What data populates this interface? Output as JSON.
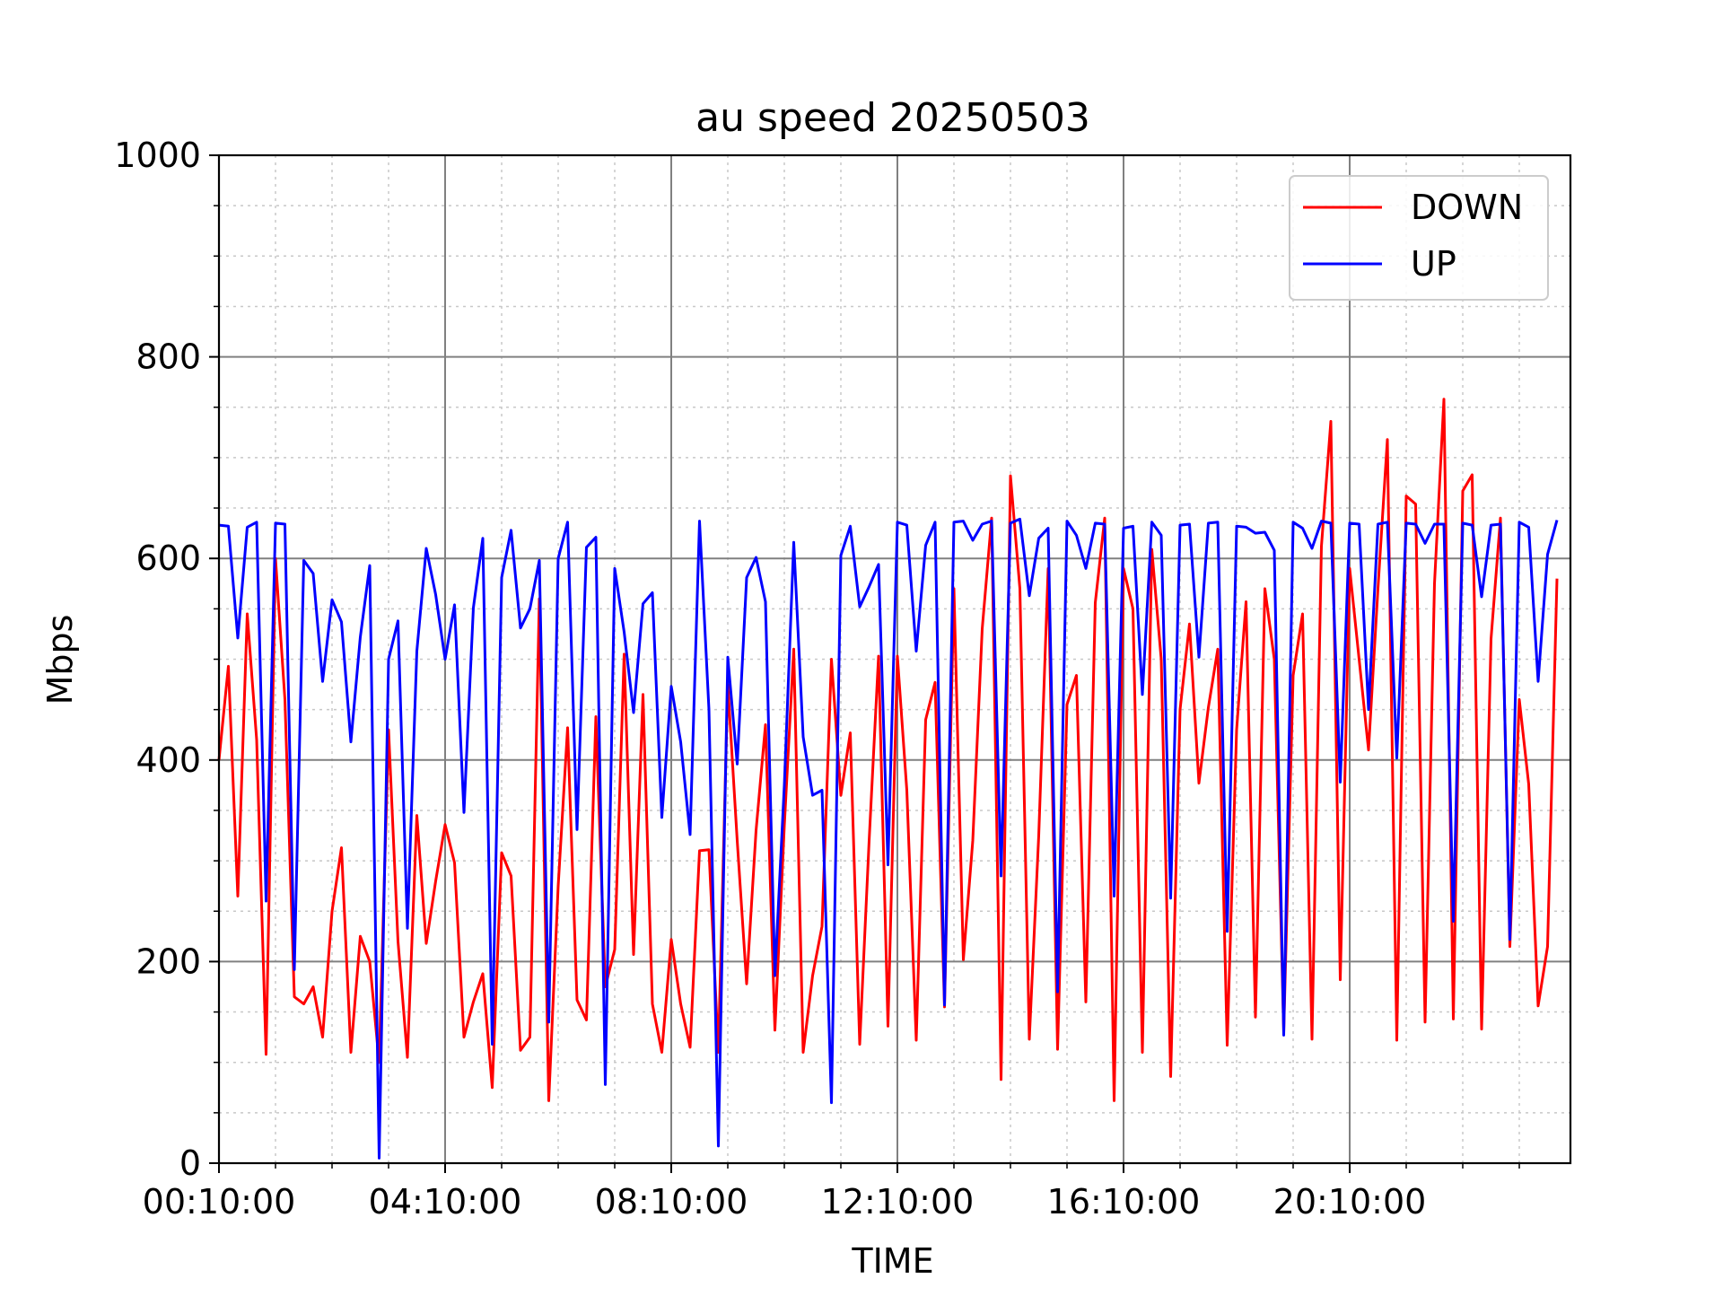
{
  "chart_data": {
    "type": "line",
    "title": "au speed 20250503",
    "xlabel": "TIME",
    "ylabel": "Mbps",
    "ylim": [
      0,
      1000
    ],
    "yticks": [
      0,
      200,
      400,
      600,
      800,
      1000
    ],
    "xticks": [
      "00:10:00",
      "04:10:00",
      "08:10:00",
      "12:10:00",
      "16:10:00",
      "20:10:00"
    ],
    "grid": {
      "major": true,
      "minor": true
    },
    "legend_position": "top-right",
    "series": [
      {
        "name": "DOWN",
        "color": "#ff0000",
        "x": [
          "00:10:00",
          "00:20:00",
          "00:30:00",
          "00:40:00",
          "00:50:00",
          "01:00:00",
          "01:10:00",
          "01:20:00",
          "01:30:00",
          "01:40:00",
          "01:50:00",
          "02:00:00",
          "02:10:00",
          "02:20:00",
          "02:30:00",
          "02:40:00",
          "02:50:00",
          "03:00:00",
          "03:10:00",
          "03:20:00",
          "03:30:00",
          "03:40:00",
          "03:50:00",
          "04:00:00",
          "04:10:00",
          "04:20:00",
          "04:30:00",
          "04:40:00",
          "04:50:00",
          "05:00:00",
          "05:10:00",
          "05:20:00",
          "05:30:00",
          "05:40:00",
          "05:50:00",
          "06:00:00",
          "06:10:00",
          "06:20:00",
          "06:30:00",
          "06:40:00",
          "06:50:00",
          "07:00:00",
          "07:10:00",
          "07:20:00",
          "07:30:00",
          "07:40:00",
          "07:50:00",
          "08:00:00",
          "08:10:00",
          "08:20:00",
          "08:30:00",
          "08:40:00",
          "08:50:00",
          "09:00:00",
          "09:10:00",
          "09:20:00",
          "09:30:00",
          "09:40:00",
          "09:50:00",
          "10:00:00",
          "10:10:00",
          "10:20:00",
          "10:30:00",
          "10:40:00",
          "10:50:00",
          "11:00:00",
          "11:10:00",
          "11:20:00",
          "11:30:00",
          "11:40:00",
          "11:50:00",
          "12:00:00",
          "12:10:00",
          "12:20:00",
          "12:30:00",
          "12:40:00",
          "12:50:00",
          "13:00:00",
          "13:10:00",
          "13:20:00",
          "13:30:00",
          "13:40:00",
          "13:50:00",
          "14:00:00",
          "14:10:00",
          "14:20:00",
          "14:30:00",
          "14:40:00",
          "14:50:00",
          "15:00:00",
          "15:10:00",
          "15:20:00",
          "15:30:00",
          "15:40:00",
          "15:50:00",
          "16:00:00",
          "16:10:00",
          "16:20:00",
          "16:30:00",
          "16:40:00",
          "16:50:00",
          "17:00:00",
          "17:10:00",
          "17:20:00",
          "17:30:00",
          "17:40:00",
          "17:50:00",
          "18:00:00",
          "18:10:00",
          "18:20:00",
          "18:30:00",
          "18:40:00",
          "18:50:00",
          "19:00:00",
          "19:10:00",
          "19:20:00",
          "19:30:00",
          "19:40:00",
          "19:50:00",
          "20:00:00",
          "20:10:00",
          "20:20:00",
          "20:30:00",
          "20:40:00",
          "20:50:00",
          "21:00:00",
          "21:10:00",
          "21:20:00",
          "21:30:00",
          "21:40:00",
          "21:50:00",
          "22:00:00",
          "22:10:00",
          "22:20:00",
          "22:30:00",
          "22:40:00",
          "22:50:00",
          "23:00:00",
          "23:10:00",
          "23:20:00",
          "23:30:00",
          "23:40:00",
          "23:50:00"
        ],
        "values": [
          400,
          493,
          265,
          545,
          420,
          108,
          600,
          460,
          165,
          158,
          175,
          125,
          250,
          313,
          110,
          225,
          200,
          100,
          430,
          220,
          105,
          345,
          218,
          280,
          336,
          298,
          125,
          160,
          188,
          75,
          308,
          285,
          112,
          125,
          560,
          62,
          275,
          432,
          162,
          142,
          443,
          175,
          212,
          505,
          207,
          465,
          158,
          110,
          222,
          158,
          115,
          310,
          311,
          110,
          475,
          320,
          178,
          330,
          435,
          132,
          335,
          510,
          110,
          186,
          235,
          500,
          365,
          427,
          118,
          320,
          503,
          136,
          503,
          370,
          122,
          440,
          477,
          155,
          570,
          202,
          320,
          530,
          640,
          83,
          682,
          570,
          123,
          325,
          590,
          113,
          455,
          484,
          160,
          556,
          640,
          62,
          590,
          550,
          110,
          609,
          500,
          86,
          450,
          535,
          377,
          452,
          510,
          117,
          430,
          557,
          145,
          570,
          500,
          130,
          484,
          545,
          123,
          612,
          736,
          182,
          590,
          500,
          410,
          570,
          718,
          122,
          662,
          654,
          140,
          575,
          758,
          143,
          667,
          683,
          133,
          520,
          640,
          215,
          460,
          376,
          156,
          215,
          580
        ]
      },
      {
        "name": "UP",
        "color": "#0000ff",
        "x": [
          "00:10:00",
          "00:20:00",
          "00:30:00",
          "00:40:00",
          "00:50:00",
          "01:00:00",
          "01:10:00",
          "01:20:00",
          "01:30:00",
          "01:40:00",
          "01:50:00",
          "02:00:00",
          "02:10:00",
          "02:20:00",
          "02:30:00",
          "02:40:00",
          "02:50:00",
          "03:00:00",
          "03:10:00",
          "03:20:00",
          "03:30:00",
          "03:40:00",
          "03:50:00",
          "04:00:00",
          "04:10:00",
          "04:20:00",
          "04:30:00",
          "04:40:00",
          "04:50:00",
          "05:00:00",
          "05:10:00",
          "05:20:00",
          "05:30:00",
          "05:40:00",
          "05:50:00",
          "06:00:00",
          "06:10:00",
          "06:20:00",
          "06:30:00",
          "06:40:00",
          "06:50:00",
          "07:00:00",
          "07:10:00",
          "07:20:00",
          "07:30:00",
          "07:40:00",
          "07:50:00",
          "08:00:00",
          "08:10:00",
          "08:20:00",
          "08:30:00",
          "08:40:00",
          "08:50:00",
          "09:00:00",
          "09:10:00",
          "09:20:00",
          "09:30:00",
          "09:40:00",
          "09:50:00",
          "10:00:00",
          "10:10:00",
          "10:20:00",
          "10:30:00",
          "10:40:00",
          "10:50:00",
          "11:00:00",
          "11:10:00",
          "11:20:00",
          "11:30:00",
          "11:40:00",
          "11:50:00",
          "12:00:00",
          "12:10:00",
          "12:20:00",
          "12:30:00",
          "12:40:00",
          "12:50:00",
          "13:00:00",
          "13:10:00",
          "13:20:00",
          "13:30:00",
          "13:40:00",
          "13:50:00",
          "14:00:00",
          "14:10:00",
          "14:20:00",
          "14:30:00",
          "14:40:00",
          "14:50:00",
          "15:00:00",
          "15:10:00",
          "15:20:00",
          "15:30:00",
          "15:40:00",
          "15:50:00",
          "16:00:00",
          "16:10:00",
          "16:20:00",
          "16:30:00",
          "16:40:00",
          "16:50:00",
          "17:00:00",
          "17:10:00",
          "17:20:00",
          "17:30:00",
          "17:40:00",
          "17:50:00",
          "18:00:00",
          "18:10:00",
          "18:20:00",
          "18:30:00",
          "18:40:00",
          "18:50:00",
          "19:00:00",
          "19:10:00",
          "19:20:00",
          "19:30:00",
          "19:40:00",
          "19:50:00",
          "20:00:00",
          "20:10:00",
          "20:20:00",
          "20:30:00",
          "20:40:00",
          "20:50:00",
          "21:00:00",
          "21:10:00",
          "21:20:00",
          "21:30:00",
          "21:40:00",
          "21:50:00",
          "22:00:00",
          "22:10:00",
          "22:20:00",
          "22:30:00",
          "22:40:00",
          "22:50:00",
          "23:00:00",
          "23:10:00",
          "23:20:00",
          "23:30:00",
          "23:40:00",
          "23:50:00"
        ],
        "values": [
          633,
          632,
          521,
          631,
          636,
          260,
          635,
          634,
          192,
          598,
          585,
          478,
          559,
          537,
          418,
          522,
          593,
          5,
          500,
          538,
          233,
          508,
          610,
          564,
          500,
          554,
          348,
          551,
          620,
          118,
          581,
          628,
          531,
          550,
          598,
          140,
          600,
          636,
          331,
          611,
          621,
          78,
          590,
          527,
          447,
          555,
          566,
          343,
          473,
          418,
          326,
          637,
          450,
          17,
          502,
          396,
          581,
          601,
          557,
          186,
          375,
          616,
          423,
          365,
          370,
          60,
          603,
          632,
          552,
          572,
          594,
          296,
          636,
          633,
          508,
          613,
          636,
          157,
          636,
          637,
          618,
          634,
          637,
          285,
          635,
          639,
          563,
          620,
          630,
          170,
          637,
          623,
          590,
          635,
          634,
          265,
          630,
          632,
          465,
          636,
          623,
          263,
          633,
          634,
          502,
          635,
          636,
          230,
          632,
          631,
          625,
          626,
          608,
          127,
          636,
          630,
          610,
          637,
          635,
          378,
          635,
          634,
          450,
          634,
          636,
          402,
          635,
          634,
          615,
          634,
          634,
          240,
          635,
          633,
          562,
          633,
          634,
          222,
          636,
          631,
          478,
          604,
          638
        ]
      }
    ]
  }
}
